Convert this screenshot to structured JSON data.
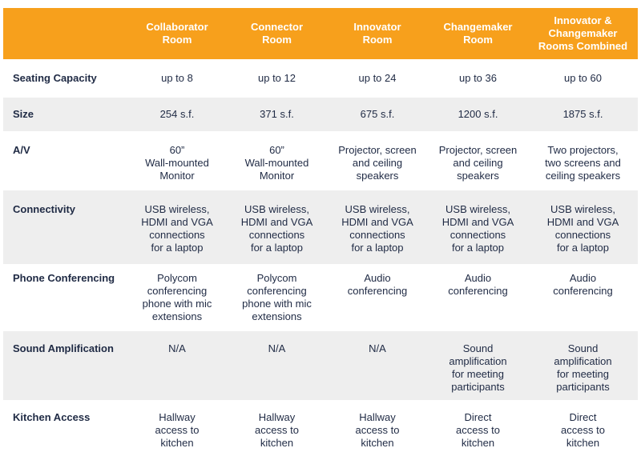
{
  "header": {
    "corner": "",
    "columns": [
      "Collaborator\nRoom",
      "Connector\nRoom",
      "Innovator\nRoom",
      "Changemaker\nRoom",
      "Innovator &\nChangemaker\nRooms Combined"
    ]
  },
  "rows": [
    {
      "label": "Seating Capacity",
      "cells": [
        "up to 8",
        "up to 12",
        "up to 24",
        "up to 36",
        "up to 60"
      ]
    },
    {
      "label": "Size",
      "cells": [
        "254 s.f.",
        "371 s.f.",
        "675 s.f.",
        "1200 s.f.",
        "1875 s.f."
      ]
    },
    {
      "label": "A/V",
      "cells": [
        "60”\nWall-mounted\nMonitor",
        "60”\nWall-mounted\nMonitor",
        "Projector, screen\nand ceiling\nspeakers",
        "Projector, screen\nand ceiling\nspeakers",
        "Two projectors,\ntwo screens and\nceiling speakers"
      ]
    },
    {
      "label": "Connectivity",
      "cells": [
        "USB wireless,\nHDMI and VGA\nconnections\nfor a laptop",
        "USB wireless,\nHDMI and VGA\nconnections\nfor a laptop",
        "USB wireless,\nHDMI and VGA\nconnections\nfor a laptop",
        "USB wireless,\nHDMI and VGA\nconnections\nfor a laptop",
        "USB wireless,\nHDMI and VGA\nconnections\nfor a laptop"
      ]
    },
    {
      "label": "Phone Conferencing",
      "cells": [
        "Polycom\nconferencing\nphone with mic\nextensions",
        "Polycom\nconferencing\nphone with mic\nextensions",
        "Audio\nconferencing",
        "Audio\nconferencing",
        "Audio\nconferencing"
      ]
    },
    {
      "label": "Sound Amplification",
      "cells": [
        "N/A",
        "N/A",
        "N/A",
        "Sound\namplification\nfor meeting\nparticipants",
        "Sound\namplification\nfor meeting\nparticipants"
      ]
    },
    {
      "label": "Kitchen Access",
      "cells": [
        "Hallway\naccess to\nkitchen",
        "Hallway\naccess to\nkitchen",
        "Hallway\naccess to\nkitchen",
        "Direct\naccess to\nkitchen",
        "Direct\naccess to\nkitchen"
      ]
    }
  ],
  "colors": {
    "header_bg": "#f7a01c",
    "header_text": "#ffffff",
    "row_shade": "#eeeeee",
    "body_text": "#1f2a44"
  }
}
